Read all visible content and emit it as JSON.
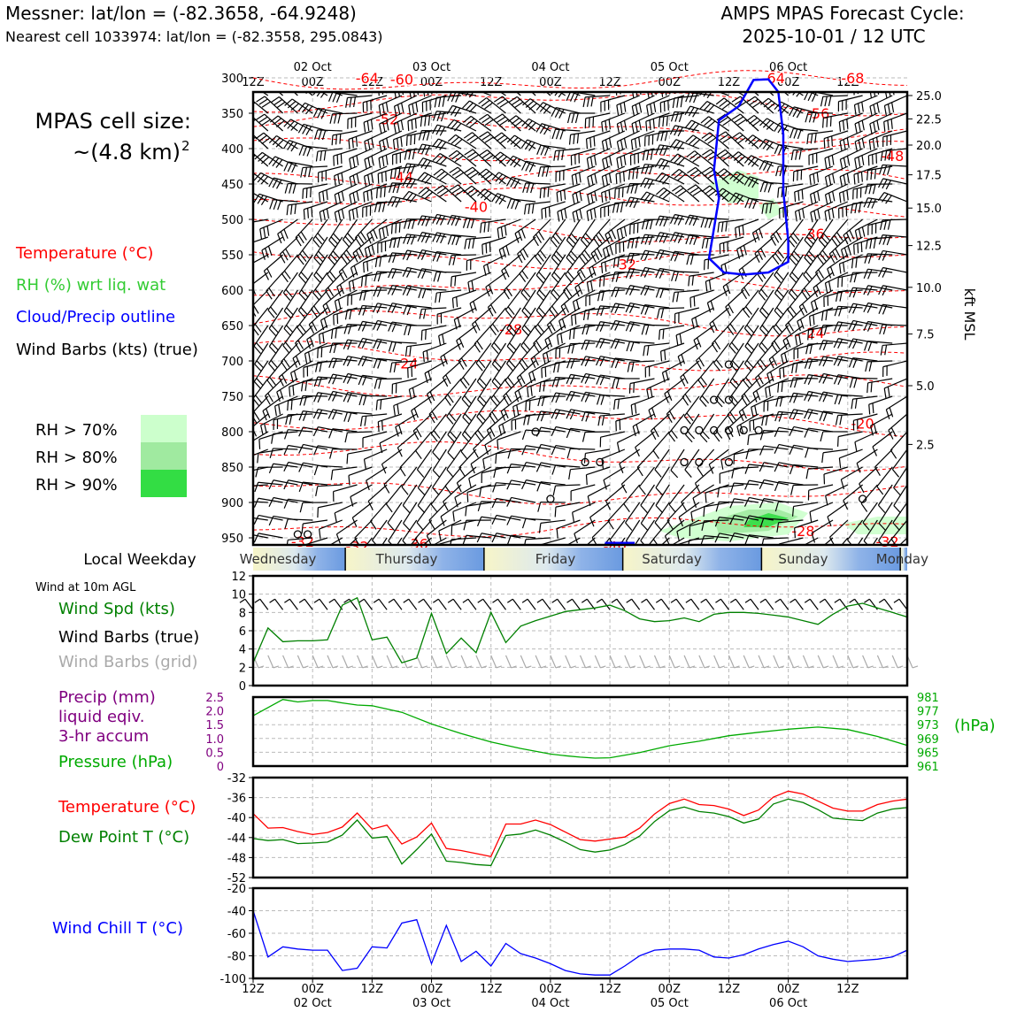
{
  "header": {
    "station": "Messner: lat/lon = (-82.3658, -64.9248)",
    "nearest_cell": "Nearest cell 1033974: lat/lon = (-82.3558, 295.0843)",
    "cycle_title": "AMPS MPAS Forecast Cycle:",
    "cycle_time": "2025-10-01 / 12 UTC"
  },
  "left_panel": {
    "cell_size_line1": "MPAS cell size:",
    "cell_size_line2": "~(4.8 km)",
    "cell_size_sup": "2",
    "legend": {
      "temperature": "Temperature (°C)",
      "rh": "RH (%) wrt liq. wat",
      "cloud": "Cloud/Precip outline",
      "wind": "Wind Barbs (kts) (true)"
    },
    "rh_keys": [
      "RH > 70%",
      "RH > 80%",
      "RH > 90%"
    ],
    "rh_colors": [
      "#ccffcc",
      "#a0eaa0",
      "#33dd44"
    ]
  },
  "colors": {
    "temperature": "#ff0000",
    "rh": "#33cc33",
    "cloud": "#0000ff",
    "wind": "#000000",
    "wind_grid": "#aaaaaa",
    "precip": "#800080",
    "pressure": "#00aa00",
    "dewpoint": "#008000",
    "windchill": "#0000ff",
    "speed": "#008000"
  },
  "time_axis": {
    "top_labels": [
      "12Z",
      "00Z",
      "12Z",
      "00Z",
      "12Z",
      "00Z",
      "12Z",
      "00Z",
      "12Z",
      "00Z",
      "12Z"
    ],
    "date_labels": [
      "02 Oct",
      "03 Oct",
      "04 Oct",
      "05 Oct",
      "06 Oct"
    ]
  },
  "weekday": {
    "title": "Local Weekday",
    "days": [
      "Wednesday",
      "Thursday",
      "Friday",
      "Saturday",
      "Sunday",
      "Monday"
    ]
  },
  "panels": {
    "wind10m_title": "Wind at 10m AGL",
    "wind_speed_label": "Wind Spd (kts)",
    "wind_barbs_true": "Wind Barbs (true)",
    "wind_barbs_grid": "Wind Barbs (grid)",
    "precip_label_1": "Precip (mm)",
    "precip_label_2": "liquid eqiv.",
    "precip_label_3": "3-hr accum",
    "pressure_label": "Pressure (hPa)",
    "pressure_unit": "(hPa)",
    "temp_label": "Temperature (°C)",
    "dew_label": "Dew Point T (°C)",
    "chill_label": "Wind Chill T (°C)"
  },
  "chart_data": [
    {
      "type": "heatmap",
      "name": "upper-air time-height section",
      "y_axis_left_label": "",
      "pressure_ticks": [
        300,
        350,
        400,
        450,
        500,
        550,
        600,
        650,
        700,
        750,
        800,
        850,
        900,
        950
      ],
      "ylabel_right": "kft MSL",
      "height_ticks_kft": [
        "25.0",
        "22.5",
        "20.0",
        "17.5",
        "15.0",
        "12.5",
        "10.0",
        "7.5",
        "5.0",
        "2.5"
      ],
      "height_tick_pressures": [
        325,
        358,
        395,
        437,
        484,
        537,
        596,
        662,
        735,
        818
      ],
      "ylim": [
        320,
        960
      ],
      "x_hours": [
        0,
        132
      ],
      "isotherm_labels": [
        {
          "text": "-64",
          "hour": 23,
          "p": 300
        },
        {
          "text": "-60",
          "hour": 30,
          "p": 302
        },
        {
          "text": "-64",
          "hour": 105,
          "p": 300
        },
        {
          "text": "-68",
          "hour": 121,
          "p": 300
        },
        {
          "text": "-56",
          "hour": 114,
          "p": 350
        },
        {
          "text": "-52",
          "hour": 27,
          "p": 358
        },
        {
          "text": "-48",
          "hour": 129,
          "p": 410
        },
        {
          "text": "-44",
          "hour": 30,
          "p": 440
        },
        {
          "text": "-40",
          "hour": 45,
          "p": 482
        },
        {
          "text": "-36",
          "hour": 113,
          "p": 520
        },
        {
          "text": "-32",
          "hour": 75,
          "p": 563
        },
        {
          "text": "-28",
          "hour": 52,
          "p": 655
        },
        {
          "text": "-24",
          "hour": 31,
          "p": 703
        },
        {
          "text": "-24",
          "hour": 113,
          "p": 660
        },
        {
          "text": "-20",
          "hour": 123,
          "p": 788
        },
        {
          "text": "-32",
          "hour": 10,
          "p": 955
        },
        {
          "text": "-32",
          "hour": 21,
          "p": 962
        },
        {
          "text": "-36",
          "hour": 33,
          "p": 958
        },
        {
          "text": "-40",
          "hour": 73,
          "p": 962
        },
        {
          "text": "-28",
          "hour": 111,
          "p": 940
        },
        {
          "text": "-32",
          "hour": 128,
          "p": 955
        }
      ],
      "cloud_outline": [
        [
          92,
          555
        ],
        [
          94,
          470
        ],
        [
          93,
          430
        ],
        [
          94,
          360
        ],
        [
          98,
          340
        ],
        [
          101,
          303
        ],
        [
          104,
          302
        ],
        [
          106,
          320
        ],
        [
          107,
          380
        ],
        [
          107,
          460
        ],
        [
          108,
          530
        ],
        [
          108,
          560
        ],
        [
          104,
          575
        ],
        [
          99,
          578
        ],
        [
          95,
          575
        ],
        [
          92,
          555
        ]
      ],
      "rh_regions": [
        {
          "level": 1,
          "points": [
            [
              90,
              920
            ],
            [
              96,
              905
            ],
            [
              106,
              900
            ],
            [
              112,
              915
            ],
            [
              108,
              945
            ],
            [
              96,
              955
            ],
            [
              86,
              950
            ],
            [
              82,
              940
            ]
          ]
        },
        {
          "level": 2,
          "points": [
            [
              93,
              925
            ],
            [
              100,
              910
            ],
            [
              106,
              910
            ],
            [
              110,
              920
            ],
            [
              104,
              940
            ],
            [
              94,
              945
            ]
          ]
        },
        {
          "level": 3,
          "points": [
            [
              100,
              925
            ],
            [
              104,
              915
            ],
            [
              108,
              922
            ],
            [
              104,
              935
            ],
            [
              99,
              935
            ]
          ]
        },
        {
          "level": 1,
          "points": [
            [
              119,
              930
            ],
            [
              126,
              920
            ],
            [
              132,
              920
            ],
            [
              132,
              945
            ],
            [
              122,
              945
            ]
          ]
        },
        {
          "level": 1,
          "points": [
            [
              92,
              450
            ],
            [
              98,
              430
            ],
            [
              102,
              440
            ],
            [
              102,
              470
            ],
            [
              96,
              478
            ]
          ]
        },
        {
          "level": 1,
          "points": [
            [
              102,
              480
            ],
            [
              105,
              470
            ],
            [
              107,
              490
            ],
            [
              104,
              500
            ]
          ]
        }
      ],
      "calm_circles": [
        {
          "hour": 9,
          "p": 945
        },
        {
          "hour": 11,
          "p": 945
        },
        {
          "hour": 57,
          "p": 800
        },
        {
          "hour": 93,
          "p": 755
        },
        {
          "hour": 96,
          "p": 755
        },
        {
          "hour": 96,
          "p": 705
        },
        {
          "hour": 96,
          "p": 843
        },
        {
          "hour": 87,
          "p": 843
        },
        {
          "hour": 90,
          "p": 843
        },
        {
          "hour": 67,
          "p": 843
        },
        {
          "hour": 70,
          "p": 843
        },
        {
          "hour": 87,
          "p": 798
        },
        {
          "hour": 90,
          "p": 798
        },
        {
          "hour": 93,
          "p": 798
        },
        {
          "hour": 96,
          "p": 798
        },
        {
          "hour": 99,
          "p": 798
        },
        {
          "hour": 102,
          "p": 798
        },
        {
          "hour": 123,
          "p": 895
        },
        {
          "hour": 60,
          "p": 895
        }
      ]
    },
    {
      "type": "line",
      "name": "10 m wind speed",
      "ylabel": "Wind Spd (kts)",
      "ylim": [
        0,
        12
      ],
      "yticks": [
        0,
        2,
        4,
        6,
        8,
        10,
        12
      ],
      "x_hours": [
        0,
        3,
        6,
        9,
        12,
        15,
        18,
        21,
        24,
        27,
        30,
        33,
        36,
        39,
        42,
        45,
        48,
        51,
        54,
        57,
        60,
        63,
        66,
        69,
        72,
        75,
        78,
        81,
        84,
        87,
        90,
        93,
        96,
        99,
        102,
        105,
        108,
        111,
        114,
        117,
        120,
        123,
        126,
        129,
        132
      ],
      "wind_speed": [
        2.5,
        6.3,
        4.8,
        4.9,
        4.9,
        5.0,
        8.8,
        9.6,
        5.0,
        5.3,
        2.5,
        3.0,
        7.9,
        3.5,
        5.2,
        3.6,
        8.0,
        4.7,
        6.5,
        7.1,
        7.6,
        8.1,
        8.3,
        8.5,
        8.8,
        8.2,
        7.3,
        7.0,
        7.1,
        7.4,
        7.0,
        7.8,
        8.0,
        8.0,
        7.9,
        7.7,
        7.5,
        7.1,
        6.7,
        7.8,
        8.7,
        9.0,
        8.5,
        8.0,
        7.5
      ]
    },
    {
      "type": "line",
      "name": "precip and pressure",
      "precip_ylim": [
        0,
        2.5
      ],
      "precip_yticks": [
        "0",
        "0.5",
        "1.0",
        "1.5",
        "2.0",
        "2.5"
      ],
      "pressure_ylim": [
        961,
        981
      ],
      "pressure_yticks": [
        "961",
        "965",
        "969",
        "973",
        "977",
        "981"
      ],
      "x_hours": [
        0,
        6,
        9,
        12,
        15,
        18,
        21,
        24,
        30,
        36,
        42,
        48,
        54,
        60,
        63,
        66,
        69,
        72,
        78,
        84,
        90,
        96,
        102,
        108,
        114,
        120,
        126,
        132
      ],
      "pressure": [
        975.6,
        980.3,
        979.6,
        980.0,
        980.0,
        979.3,
        978.7,
        978.5,
        976.6,
        973.2,
        970.4,
        968.0,
        966.1,
        964.5,
        964.0,
        963.6,
        963.3,
        963.4,
        964.9,
        966.9,
        968.2,
        969.8,
        970.8,
        971.7,
        972.3,
        971.6,
        969.6,
        967.0
      ],
      "precip": [
        0,
        0,
        0,
        0,
        0,
        0,
        0,
        0,
        0,
        0,
        0,
        0,
        0,
        0,
        0,
        0,
        0,
        0,
        0,
        0,
        0,
        0,
        0,
        0,
        0,
        0,
        0,
        0
      ]
    },
    {
      "type": "line",
      "name": "temperature and dew point",
      "ylim": [
        -52,
        -32
      ],
      "yticks": [
        -32,
        -36,
        -40,
        -44,
        -48,
        -52
      ],
      "x_hours": [
        0,
        3,
        6,
        9,
        12,
        15,
        18,
        21,
        24,
        27,
        30,
        33,
        36,
        39,
        42,
        45,
        48,
        51,
        54,
        57,
        60,
        63,
        66,
        69,
        72,
        75,
        78,
        81,
        84,
        87,
        90,
        93,
        96,
        99,
        102,
        105,
        108,
        111,
        114,
        117,
        120,
        123,
        126,
        129,
        132
      ],
      "temperature": [
        -39.2,
        -42.1,
        -42.0,
        -42.8,
        -43.4,
        -43.0,
        -41.9,
        -39.1,
        -42.3,
        -41.5,
        -45.3,
        -43.9,
        -41.1,
        -46.2,
        -46.6,
        -47.2,
        -47.8,
        -41.3,
        -41.3,
        -40.5,
        -41.4,
        -42.9,
        -44.4,
        -44.7,
        -44.3,
        -43.9,
        -42.1,
        -39.3,
        -37.2,
        -36.3,
        -37.4,
        -37.6,
        -38.3,
        -39.6,
        -38.5,
        -35.9,
        -34.7,
        -35.3,
        -36.7,
        -38.1,
        -38.7,
        -38.7,
        -37.4,
        -36.7,
        -36.3
      ],
      "dew_point": [
        -44.2,
        -44.6,
        -44.4,
        -45.2,
        -45.1,
        -44.9,
        -43.5,
        -40.5,
        -44.1,
        -43.8,
        -49.3,
        -46.4,
        -43.3,
        -48.7,
        -49.0,
        -49.4,
        -49.6,
        -43.6,
        -43.3,
        -42.5,
        -43.5,
        -44.9,
        -46.4,
        -46.9,
        -46.5,
        -45.4,
        -43.7,
        -40.8,
        -38.6,
        -37.9,
        -38.8,
        -39.1,
        -39.8,
        -41.1,
        -40.3,
        -37.3,
        -36.3,
        -37.0,
        -38.4,
        -40.1,
        -40.4,
        -40.6,
        -39.1,
        -38.3,
        -38.0
      ]
    },
    {
      "type": "line",
      "name": "wind chill temperature",
      "ylim": [
        -100,
        -20
      ],
      "yticks": [
        -20,
        -40,
        -60,
        -80,
        -100
      ],
      "x_hours": [
        0,
        3,
        6,
        9,
        12,
        15,
        18,
        21,
        24,
        27,
        30,
        33,
        36,
        39,
        42,
        45,
        48,
        51,
        54,
        57,
        60,
        63,
        66,
        69,
        72,
        75,
        78,
        81,
        84,
        87,
        90,
        93,
        96,
        99,
        102,
        105,
        108,
        111,
        114,
        117,
        120,
        123,
        126,
        129,
        132
      ],
      "wind_chill": [
        -40,
        -81,
        -72,
        -74,
        -75,
        -75,
        -93,
        -91,
        -72,
        -73,
        -51,
        -48,
        -87,
        -53,
        -85,
        -76,
        -89,
        -69,
        -78,
        -82,
        -87,
        -93,
        -96,
        -97,
        -97,
        -89,
        -80,
        -75,
        -74,
        -74,
        -75,
        -81,
        -82,
        -79,
        -74,
        -70,
        -67,
        -72,
        -80,
        -83,
        -85,
        -84,
        -83,
        -81,
        -75
      ]
    }
  ]
}
